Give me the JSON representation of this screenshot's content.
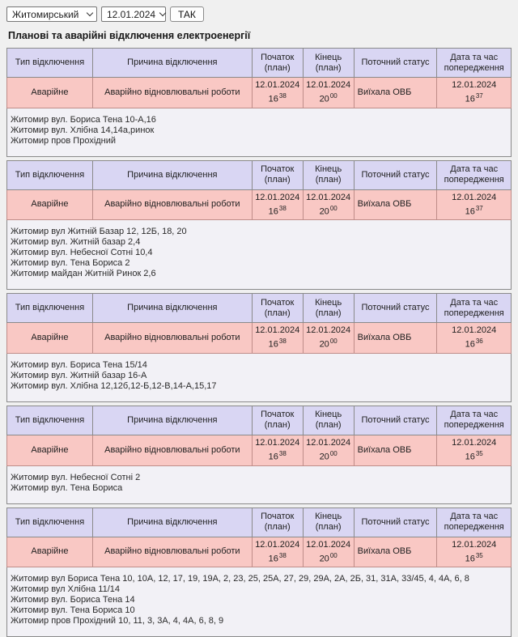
{
  "controls": {
    "region_select": {
      "value": "Житомирський"
    },
    "date_select": {
      "value": "12.01.2024"
    },
    "submit_label": "ТАК"
  },
  "page_title": "Планові та аварійні відключення електроенергії",
  "table_headers": [
    "Тип відключення",
    "Причина відключення",
    "Початок (план)",
    "Кінець (план)",
    "Поточний статус",
    "Дата та час попередження"
  ],
  "colors": {
    "page_bg": "#f0f0f0",
    "header_bg": "#d9d6f3",
    "row_bg": "#f9c8c4",
    "address_bg": "#f2f1f6",
    "table_border": "#8a8a8a",
    "row_border": "#bf8d89"
  },
  "sections": [
    {
      "row": {
        "type": "Аварійне",
        "reason": "Аварійно відновлювальні роботи",
        "start": {
          "date": "12.01.2024",
          "h": "16",
          "m": "38"
        },
        "end": {
          "date": "12.01.2024",
          "h": "20",
          "m": "00"
        },
        "status": "Виїхала ОВБ",
        "warn": {
          "date": "12.01.2024",
          "h": "16",
          "m": "37"
        }
      },
      "addresses": [
        "Житомир вул. Бориса Тена 10-А,16",
        "Житомир вул. Хлібна 14,14а,ринок",
        "Житомир пров Прохідний"
      ]
    },
    {
      "row": {
        "type": "Аварійне",
        "reason": "Аварійно відновлювальні роботи",
        "start": {
          "date": "12.01.2024",
          "h": "16",
          "m": "38"
        },
        "end": {
          "date": "12.01.2024",
          "h": "20",
          "m": "00"
        },
        "status": "Виїхала ОВБ",
        "warn": {
          "date": "12.01.2024",
          "h": "16",
          "m": "37"
        }
      },
      "addresses": [
        "Житомир вул Житній Базар 12, 12Б, 18, 20",
        "Житомир вул. Житній базар 2,4",
        "Житомир вул. Небесної Сотні 10,4",
        "Житомир вул. Тена Бориса 2",
        "Житомир майдан Житній Ринок 2,6"
      ]
    },
    {
      "row": {
        "type": "Аварійне",
        "reason": "Аварійно відновлювальні роботи",
        "start": {
          "date": "12.01.2024",
          "h": "16",
          "m": "38"
        },
        "end": {
          "date": "12.01.2024",
          "h": "20",
          "m": "00"
        },
        "status": "Виїхала ОВБ",
        "warn": {
          "date": "12.01.2024",
          "h": "16",
          "m": "36"
        }
      },
      "addresses": [
        "Житомир вул. Бориса Тена 15/14",
        "Житомир вул. Житній базар 16-А",
        "Житомир вул. Хлібна 12,12б,12-Б,12-В,14-А,15,17"
      ]
    },
    {
      "row": {
        "type": "Аварійне",
        "reason": "Аварійно відновлювальні роботи",
        "start": {
          "date": "12.01.2024",
          "h": "16",
          "m": "38"
        },
        "end": {
          "date": "12.01.2024",
          "h": "20",
          "m": "00"
        },
        "status": "Виїхала ОВБ",
        "warn": {
          "date": "12.01.2024",
          "h": "16",
          "m": "35"
        }
      },
      "addresses": [
        "Житомир вул. Небесної Сотні 2",
        "Житомир вул. Тена Бориса"
      ]
    },
    {
      "row": {
        "type": "Аварійне",
        "reason": "Аварійно відновлювальні роботи",
        "start": {
          "date": "12.01.2024",
          "h": "16",
          "m": "38"
        },
        "end": {
          "date": "12.01.2024",
          "h": "20",
          "m": "00"
        },
        "status": "Виїхала ОВБ",
        "warn": {
          "date": "12.01.2024",
          "h": "16",
          "m": "35"
        }
      },
      "addresses": [
        "Житомир вул Бориса Тена 10, 10А, 12, 17, 19, 19А, 2, 23, 25, 25А, 27, 29, 29А, 2А, 2Б, 31, 31А, 33/45, 4, 4А, 6, 8",
        "Житомир вул Хлібна 11/14",
        "Житомир вул. Бориса Тена 14",
        "Житомир вул. Тена Бориса 10",
        "Житомир пров Прохідний 10, 11, 3, 3А, 4, 4А, 6, 8, 9"
      ]
    }
  ]
}
